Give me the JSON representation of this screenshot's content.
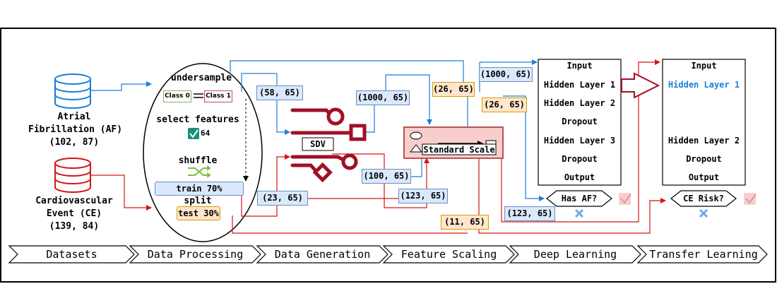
{
  "colors": {
    "blue": "#1a7fd9",
    "red": "#d81414",
    "dark_red": "#a01026",
    "teal": "#1a8f7a",
    "blue_fill": "#dae8fc",
    "orange_fill": "#ffe6cc",
    "pink_fill": "#f8cecc"
  },
  "datasets": {
    "af": {
      "line1": "Atrial",
      "line2": "Fibrillation (AF)",
      "line3": "(102, 87)",
      "icon": "database-icon"
    },
    "ce": {
      "line1": "Cardiovascular",
      "line2": "Event (CE)",
      "line3": "(139, 84)",
      "icon": "database-icon"
    }
  },
  "processing": {
    "undersample": "undersample",
    "class0": "Class 0",
    "class1": "Class 1",
    "select_features": "select features",
    "feature_count": "64",
    "shuffle": "shuffle",
    "train": "train 70%",
    "split": "split",
    "test": "test 30%"
  },
  "generation": {
    "sdv": "SDV"
  },
  "scaling": {
    "label": "Standard Scale"
  },
  "shape_tags": {
    "t58": "(58, 65)",
    "t1000a": "(1000, 65)",
    "t26a": "(26, 65)",
    "t1000b": "(1000, 65)",
    "t26b": "(26, 65)",
    "t100": "(100, 65)",
    "t23": "(23, 65)",
    "t123a": "(123, 65)",
    "t123b": "(123, 65)",
    "t11": "(11, 65)"
  },
  "model_af": {
    "layers": [
      "Input",
      "Hidden Layer 1",
      "Hidden Layer 2",
      "Dropout",
      "Hidden Layer 3",
      "Dropout",
      "Output"
    ],
    "decision": "Has AF?"
  },
  "model_ce": {
    "layers": [
      "Input",
      "Hidden Layer 1",
      "Hidden Layer 2",
      "Dropout",
      "Output"
    ],
    "decision": "CE Risk?"
  },
  "stages": [
    "Datasets",
    "Data Processing",
    "Data Generation",
    "Feature Scaling",
    "Deep Learning",
    "Transfer Learning"
  ]
}
